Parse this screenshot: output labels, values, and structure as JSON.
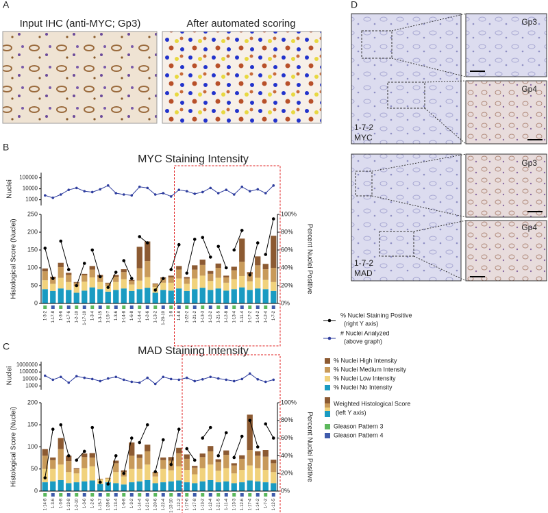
{
  "panel_labels": [
    "A",
    "B",
    "C",
    "D"
  ],
  "panel_a": {
    "left_title": "Input IHC (anti-MYC; Gp3)",
    "right_title": "After automated scoring"
  },
  "panel_d": {
    "top": {
      "sample": "1-7-2",
      "stain": "MYC",
      "insets": [
        "Gp3",
        "Gp4"
      ]
    },
    "bottom": {
      "sample": "1-7-2",
      "stain": "MAD",
      "insets": [
        "Gp3",
        "Gp4"
      ]
    }
  },
  "legend": {
    "percent_note": "(right Y axis)",
    "nuclei_note": "(above graph)",
    "weighted": "Weighted Histological Score",
    "weighted_note": "(left Y axis)",
    "gleason": [
      {
        "label": "Gleason Pattern 3",
        "color": "#5cb85c"
      },
      {
        "label": "Gleason Pattern 4",
        "color": "#3f5bab"
      }
    ]
  },
  "chart_data": [
    {
      "type": "line",
      "ylabel": "Nuclei",
      "yscale": "log",
      "ylim": [
        300,
        300000
      ],
      "yticks": [
        1000,
        10000,
        100000
      ],
      "series": [
        {
          "name": "# Nuclei Analyzed",
          "color": "#2e3d9e",
          "values": [
            2500,
            1500,
            3000,
            8000,
            12000,
            6000,
            5000,
            9000,
            20000,
            4000,
            3000,
            2500,
            15000,
            12000,
            3000,
            4000,
            2000,
            8000,
            6000,
            3500,
            5000,
            12000,
            4000,
            8000,
            3000,
            15000,
            6000,
            9000,
            4000,
            20000
          ]
        }
      ]
    },
    {
      "type": "bar",
      "stacked": true,
      "title": "MYC Staining Intensity",
      "ylabel": "Histological Score (Nuclei)",
      "y2label": "Percent Nuclei Positive",
      "categories": [
        "1-3-2",
        "1-17-8",
        "1-3-6",
        "1-17-6",
        "1-2-10",
        "1-17-10",
        "1-3-4",
        "1-3-15",
        "1-15-7",
        "1-3-6",
        "1-14-8",
        "1-6-8",
        "1-14-4",
        "1-2-6",
        "1-13-2",
        "1-20-10",
        "1-8",
        "1-4-8",
        "1-22-2",
        "1-21-2",
        "1-13-3",
        "1-12-2",
        "1-21-5",
        "1-12-8",
        "1-13-4",
        "1-11-4",
        "1-17-2",
        "1-14-2",
        "1-12-4",
        "1-7-2"
      ],
      "gleason": [
        3,
        4,
        3,
        4,
        3,
        4,
        3,
        4,
        3,
        4,
        3,
        4,
        3,
        4,
        3,
        4,
        3,
        4,
        3,
        4,
        3,
        4,
        3,
        4,
        3,
        4,
        3,
        4,
        3,
        4
      ],
      "ylim": [
        0,
        250
      ],
      "yticks": [
        0,
        50,
        100,
        150,
        200,
        250
      ],
      "y2lim": [
        0,
        100
      ],
      "y2ticks": [
        {
          "value": 0,
          "label": "0%"
        },
        {
          "value": 20,
          "label": "20%"
        },
        {
          "value": 40,
          "label": "40%"
        },
        {
          "value": 60,
          "label": "60%"
        },
        {
          "value": 80,
          "label": "80%"
        },
        {
          "value": 100,
          "label": "100%"
        }
      ],
      "series": [
        {
          "name": "% Nuclei No Intensity",
          "color": "#1a9bc2",
          "values": [
            40,
            35,
            42,
            38,
            30,
            36,
            45,
            40,
            33,
            38,
            42,
            35,
            40,
            44,
            30,
            38,
            36,
            42,
            35,
            40,
            44,
            38,
            42,
            36,
            40,
            45,
            38,
            42,
            40,
            35
          ]
        },
        {
          "name": "% Nuclei Low Intensity",
          "color": "#f1d27c",
          "values": [
            25,
            20,
            30,
            22,
            18,
            25,
            28,
            20,
            15,
            22,
            26,
            18,
            24,
            30,
            16,
            20,
            22,
            28,
            20,
            30,
            34,
            25,
            30,
            22,
            28,
            32,
            24,
            30,
            26,
            25
          ]
        },
        {
          "name": "% Nuclei Medium Intensity",
          "color": "#c89a5a",
          "values": [
            25,
            15,
            30,
            20,
            10,
            18,
            22,
            15,
            8,
            15,
            20,
            10,
            35,
            45,
            8,
            12,
            15,
            25,
            15,
            25,
            30,
            20,
            28,
            15,
            25,
            40,
            20,
            35,
            30,
            40
          ]
        },
        {
          "name": "% Nuclei High Intensity",
          "color": "#8c5a32",
          "values": [
            8,
            5,
            12,
            6,
            2,
            4,
            10,
            5,
            2,
            5,
            8,
            3,
            60,
            55,
            2,
            3,
            5,
            10,
            4,
            12,
            15,
            8,
            12,
            5,
            10,
            65,
            6,
            25,
            15,
            90
          ]
        },
        {
          "name": "% Nuclei Staining Positive",
          "type": "line",
          "axis": "y2",
          "color": "#000000",
          "values": [
            62,
            28,
            70,
            38,
            20,
            45,
            60,
            30,
            18,
            35,
            48,
            28,
            75,
            68,
            15,
            28,
            38,
            66,
            34,
            72,
            74,
            52,
            64,
            40,
            60,
            82,
            32,
            68,
            55,
            95
          ]
        }
      ]
    },
    {
      "type": "line",
      "ylabel": "Nuclei",
      "yscale": "log",
      "ylim": [
        300,
        3000000
      ],
      "yticks": [
        1000,
        10000,
        100000,
        1000000
      ],
      "series": [
        {
          "color": "#2e3d9e",
          "values": [
            30000,
            8000,
            20000,
            3000,
            25000,
            15000,
            10000,
            5000,
            12000,
            20000,
            8000,
            4000,
            3000,
            15000,
            2000,
            20000,
            10000,
            8000,
            15000,
            5000,
            9000,
            20000,
            12000,
            8000,
            5000,
            10000,
            60000,
            9000,
            4000,
            8000
          ]
        }
      ]
    },
    {
      "type": "bar",
      "stacked": true,
      "title": "MAD Staining Intensity",
      "ylabel": "Histological Score (Nuclei)",
      "y2label": "Percent Nuclei Positive",
      "categories": [
        "1-14-8",
        "1-3-6",
        "1-3-8",
        "1-13-8",
        "1-2-10",
        "1-3-6",
        "1-2-6",
        "1-15-7",
        "1-28-6",
        "1-13-4",
        "1-6-8",
        "1-3-2",
        "1-14-4",
        "1-21-8",
        "1-20-6",
        "1-22-4",
        "1-13-10",
        "1-12-2",
        "1-17-6",
        "1-17-8",
        "1-13-2",
        "1-12-4",
        "1-21-5",
        "1-11-4",
        "1-13-3",
        "1-12-6",
        "1-17-4",
        "1-14-2",
        "1-7-2",
        "1-12-5"
      ],
      "gleason": [
        3,
        4,
        3,
        4,
        3,
        4,
        3,
        4,
        3,
        4,
        3,
        4,
        3,
        4,
        3,
        4,
        3,
        4,
        3,
        4,
        3,
        4,
        3,
        4,
        3,
        4,
        3,
        4,
        3,
        4
      ],
      "ylim": [
        0,
        200
      ],
      "yticks": [
        0,
        50,
        100,
        150,
        200
      ],
      "y2lim": [
        0,
        100
      ],
      "y2ticks": [
        {
          "value": 0,
          "label": "0%"
        },
        {
          "value": 20,
          "label": "20%"
        },
        {
          "value": 40,
          "label": "40%"
        },
        {
          "value": 60,
          "label": "60%"
        },
        {
          "value": 80,
          "label": "80%"
        },
        {
          "value": 100,
          "label": "100%"
        }
      ],
      "series": [
        {
          "color": "#1a9bc2",
          "values": [
            20,
            22,
            25,
            18,
            20,
            22,
            24,
            16,
            20,
            18,
            15,
            20,
            22,
            25,
            18,
            20,
            22,
            24,
            20,
            18,
            22,
            25,
            20,
            22,
            18,
            20,
            24,
            22,
            20,
            18
          ]
        },
        {
          "color": "#f1d27c",
          "values": [
            30,
            28,
            35,
            25,
            20,
            30,
            32,
            10,
            8,
            25,
            18,
            30,
            28,
            35,
            15,
            30,
            25,
            32,
            28,
            20,
            30,
            35,
            26,
            30,
            22,
            28,
            34,
            30,
            28,
            25
          ]
        },
        {
          "color": "#c89a5a",
          "values": [
            30,
            20,
            35,
            25,
            10,
            25,
            20,
            2,
            2,
            20,
            10,
            30,
            25,
            30,
            8,
            20,
            22,
            30,
            25,
            15,
            25,
            30,
            20,
            30,
            18,
            25,
            35,
            28,
            30,
            20
          ]
        },
        {
          "color": "#8c5a32",
          "values": [
            15,
            6,
            25,
            12,
            2,
            8,
            10,
            0,
            0,
            6,
            4,
            30,
            8,
            15,
            2,
            6,
            8,
            12,
            10,
            4,
            8,
            12,
            6,
            10,
            5,
            8,
            80,
            10,
            15,
            8
          ]
        },
        {
          "type": "line",
          "axis": "y2",
          "color": "#000000",
          "values": [
            15,
            70,
            75,
            40,
            35,
            45,
            72,
            10,
            8,
            40,
            20,
            60,
            55,
            75,
            22,
            58,
            30,
            70,
            48,
            35,
            60,
            72,
            40,
            66,
            38,
            62,
            80,
            50,
            76,
            60
          ]
        }
      ]
    }
  ]
}
